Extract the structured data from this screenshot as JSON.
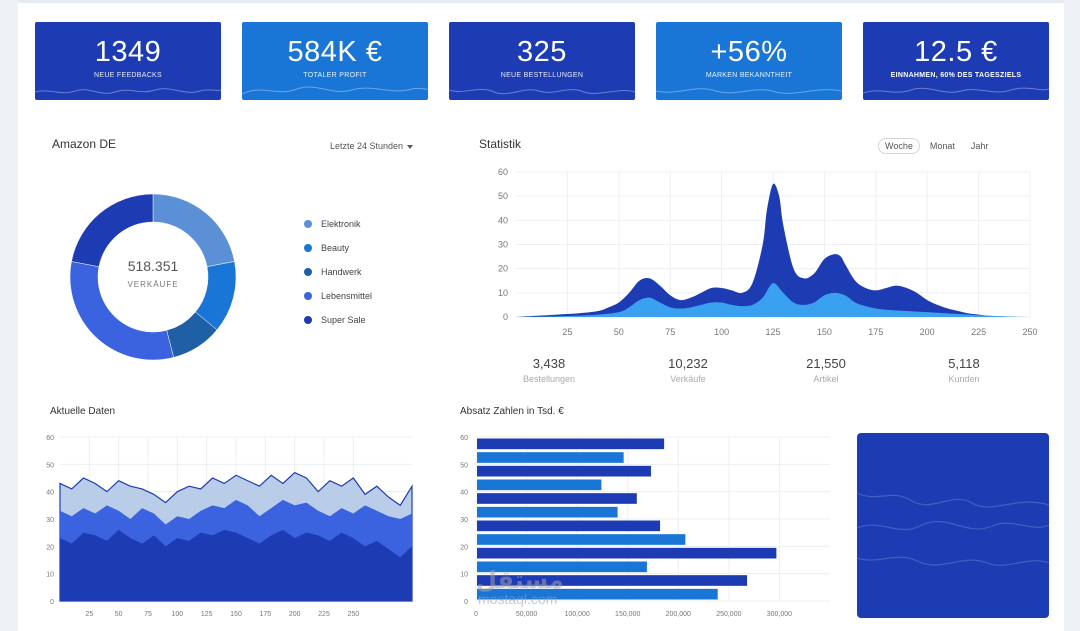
{
  "kpis": [
    {
      "value": "1349",
      "label": "NEUE FEEDBACKS",
      "style": "dark"
    },
    {
      "value": "584K €",
      "label": "TOTALER PROFIT",
      "style": "light"
    },
    {
      "value": "325",
      "label": "NEUE BESTELLUNGEN",
      "style": "dark"
    },
    {
      "value": "+56%",
      "label": "MARKEN BEKANNTHEIT",
      "style": "light"
    },
    {
      "value": "12.5 €",
      "label": "EINNAHMEN, 60% DES TAGESZIELS",
      "style": "dark"
    }
  ],
  "amazon": {
    "title": "Amazon DE",
    "range_label": "Letzte 24 Stunden",
    "center_value": "518.351",
    "center_label": "VERKÄUFE"
  },
  "statistik": {
    "title": "Statistik",
    "tabs": [
      "Woche",
      "Monat",
      "Jahr"
    ],
    "active_tab": "Woche"
  },
  "stats": [
    {
      "value": "3,438",
      "label": "Bestellungen"
    },
    {
      "value": "10,232",
      "label": "Verkäufe"
    },
    {
      "value": "21,550",
      "label": "Artikel"
    },
    {
      "value": "5,118",
      "label": "Kunden"
    }
  ],
  "aktuelle": {
    "title": "Aktuelle Daten"
  },
  "absatz": {
    "title": "Absatz Zahlen in Tsd. €"
  },
  "watermark": {
    "text": "مستقل",
    "sub": "mostaql.com"
  },
  "chart_data": [
    {
      "type": "pie",
      "variant": "donut",
      "title": "Amazon DE",
      "labels": [
        "Elektronik",
        "Beauty",
        "Handwerk",
        "Lebensmittel",
        "Super Sale"
      ],
      "values": [
        22,
        14,
        10,
        32,
        22
      ],
      "colors": [
        "#5b8fd6",
        "#1976d6",
        "#1f5fa6",
        "#3b63e0",
        "#1d3bb3"
      ]
    },
    {
      "type": "area",
      "title": "Statistik",
      "x_ticks": [
        25,
        50,
        75,
        100,
        125,
        150,
        175,
        200,
        225,
        250
      ],
      "ylim": [
        0,
        60
      ],
      "y_ticks": [
        0,
        10,
        20,
        30,
        40,
        50,
        60
      ],
      "xlim": [
        0,
        250
      ],
      "series": [
        {
          "name": "outer",
          "color": "#1d3bb3",
          "x": [
            0,
            10,
            20,
            30,
            40,
            45,
            50,
            55,
            60,
            65,
            70,
            75,
            80,
            85,
            90,
            95,
            100,
            105,
            110,
            115,
            120,
            122,
            125,
            128,
            130,
            135,
            140,
            145,
            150,
            155,
            158,
            160,
            165,
            170,
            175,
            180,
            185,
            190,
            195,
            200,
            205,
            210,
            215,
            220,
            225,
            230,
            235,
            240,
            245,
            250
          ],
          "y": [
            0,
            0.5,
            1,
            1.5,
            2.5,
            4,
            6,
            10,
            15,
            16,
            13,
            9,
            7,
            8,
            10,
            12,
            12,
            11,
            10,
            14,
            30,
            44,
            55,
            50,
            38,
            20,
            16,
            18,
            24,
            26,
            25,
            22,
            15,
            12,
            11,
            12,
            13,
            12,
            10,
            7,
            5,
            3.5,
            2.5,
            1.5,
            1,
            0.5,
            0.3,
            0.1,
            0,
            0
          ]
        },
        {
          "name": "inner",
          "color": "#3aa0f0",
          "x": [
            0,
            20,
            40,
            50,
            55,
            60,
            65,
            70,
            75,
            80,
            85,
            90,
            95,
            100,
            105,
            110,
            115,
            120,
            125,
            130,
            135,
            140,
            145,
            150,
            155,
            160,
            165,
            170,
            175,
            180,
            190,
            200,
            210,
            220,
            230,
            240,
            250
          ],
          "y": [
            0,
            0.3,
            1,
            2,
            4,
            7,
            8,
            6,
            4,
            3.5,
            4,
            5,
            6,
            6,
            5,
            4.5,
            5,
            8,
            14,
            10,
            6,
            5,
            6,
            9,
            10,
            9,
            6,
            4.5,
            3.5,
            3,
            2.5,
            2,
            1.5,
            1,
            0.5,
            0.2,
            0
          ]
        }
      ]
    },
    {
      "type": "area",
      "variant": "stacked",
      "title": "Aktuelle Daten",
      "x_ticks": [
        25,
        50,
        75,
        100,
        125,
        150,
        175,
        200,
        225,
        250
      ],
      "ylim": [
        0,
        60
      ],
      "y_ticks": [
        0,
        10,
        20,
        30,
        40,
        50,
        60
      ],
      "xlim": [
        0,
        300
      ],
      "series": [
        {
          "name": "top",
          "color": "#b9cde8",
          "x": [
            0,
            10,
            20,
            30,
            40,
            50,
            60,
            70,
            80,
            90,
            100,
            110,
            120,
            130,
            140,
            150,
            160,
            170,
            180,
            190,
            200,
            210,
            220,
            230,
            240,
            250,
            260,
            270,
            280,
            290,
            300
          ],
          "y": [
            43,
            41,
            45,
            43,
            40,
            44,
            42,
            41,
            39,
            36,
            40,
            42,
            41,
            45,
            43,
            46,
            44,
            42,
            46,
            43,
            47,
            45,
            40,
            44,
            42,
            45,
            39,
            42,
            38,
            35,
            42
          ]
        },
        {
          "name": "middle",
          "color": "#3b63e0",
          "x": [
            0,
            10,
            20,
            30,
            40,
            50,
            60,
            70,
            80,
            90,
            100,
            110,
            120,
            130,
            140,
            150,
            160,
            170,
            180,
            190,
            200,
            210,
            220,
            230,
            240,
            250,
            260,
            270,
            280,
            290,
            300
          ],
          "y": [
            33,
            31,
            34,
            32,
            35,
            33,
            30,
            34,
            32,
            28,
            31,
            30,
            33,
            35,
            34,
            37,
            35,
            31,
            34,
            37,
            35,
            36,
            33,
            31,
            34,
            32,
            35,
            33,
            31,
            30,
            32
          ]
        },
        {
          "name": "bottom",
          "color": "#1d3bb3",
          "x": [
            0,
            10,
            20,
            30,
            40,
            50,
            60,
            70,
            80,
            90,
            100,
            110,
            120,
            130,
            140,
            150,
            160,
            170,
            180,
            190,
            200,
            210,
            220,
            230,
            240,
            250,
            260,
            270,
            280,
            290,
            300
          ],
          "y": [
            23,
            21,
            25,
            24,
            22,
            26,
            23,
            21,
            24,
            20,
            23,
            22,
            25,
            24,
            26,
            25,
            23,
            21,
            24,
            26,
            23,
            25,
            24,
            22,
            25,
            23,
            20,
            22,
            19,
            16,
            20
          ]
        }
      ]
    },
    {
      "type": "bar",
      "orientation": "horizontal",
      "title": "Absatz Zahlen in Tsd. €",
      "xlim": [
        0,
        350000
      ],
      "x_ticks": [
        0,
        50000,
        100000,
        150000,
        200000,
        250000,
        300000
      ],
      "x_tick_labels": [
        "0",
        "50,000",
        "100,000",
        "150,000",
        "200,000",
        "250,000",
        "300,000"
      ],
      "y_ticks": [
        0,
        10,
        20,
        30,
        40,
        50,
        60
      ],
      "values": [
        185000,
        145000,
        172000,
        123000,
        158000,
        139000,
        181000,
        206000,
        296000,
        168000,
        267000,
        238000
      ],
      "colors": [
        "#1d3bb3",
        "#1976d6",
        "#1d3bb3",
        "#1976d6",
        "#1d3bb3",
        "#1976d6",
        "#1d3bb3",
        "#1976d6",
        "#1d3bb3",
        "#1976d6",
        "#1d3bb3",
        "#1976d6"
      ]
    }
  ]
}
